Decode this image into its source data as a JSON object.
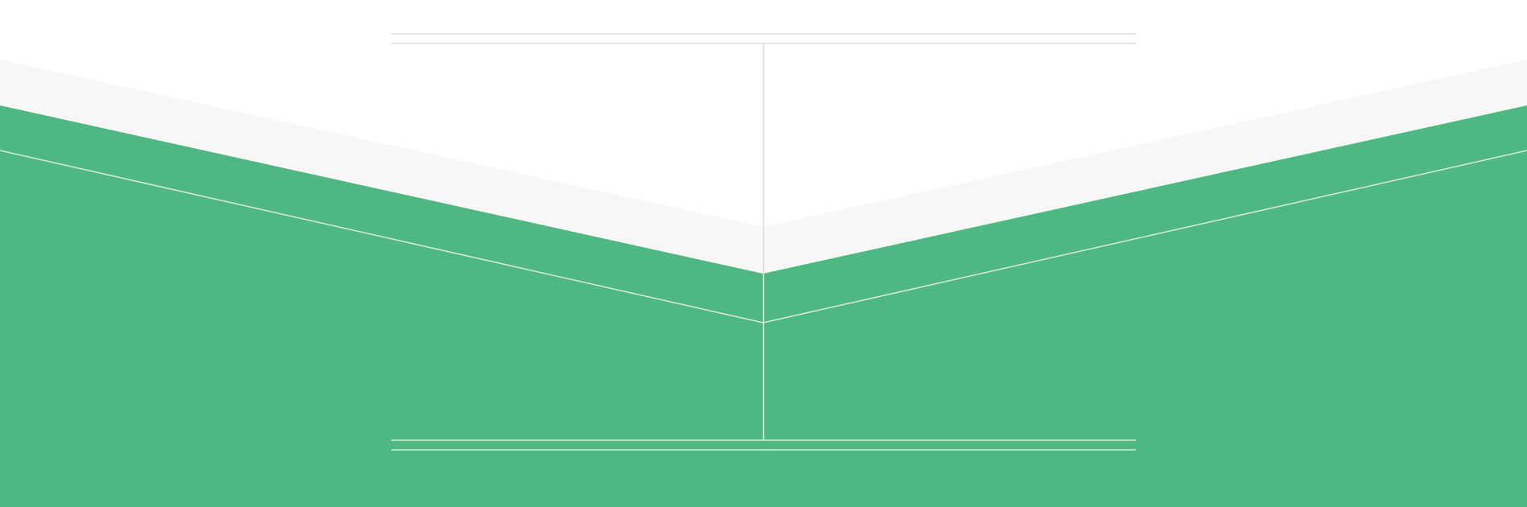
{
  "colors": {
    "background": "#ffffff",
    "light_band": "#f7f7f7",
    "light_band_edge": "#e8e8e8",
    "green": "#4fb882",
    "guide_line_on_white": "#dcdcdc",
    "guide_line_on_green": "#d7e9dc"
  }
}
